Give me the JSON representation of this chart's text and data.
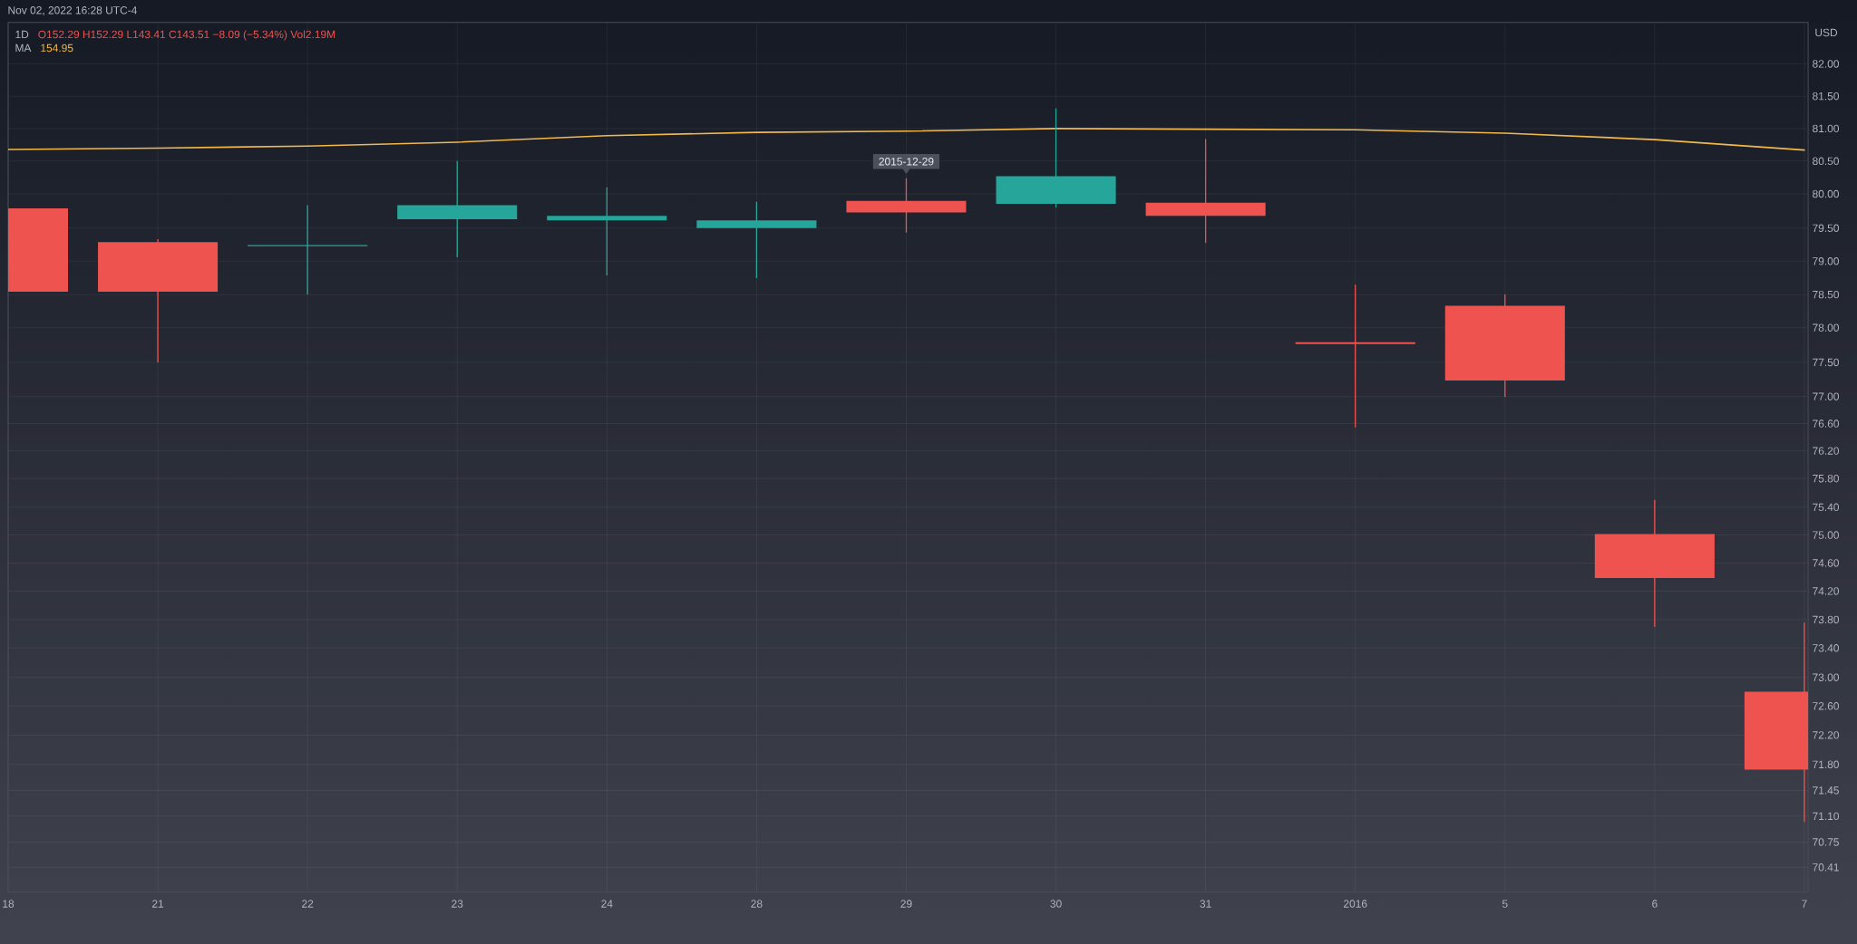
{
  "chart_data": {
    "type": "candlestick",
    "annotations": [
      "Nov 02, 2022 16:28 UTC-4",
      "1D",
      "O152.29 H152.29 L143.41 C143.51 −8.09 (−5.34%) Vol2.19M",
      "154.95",
      {
        "text": "2015-12-29",
        "x": "29",
        "y": 80.31
      }
    ],
    "ylabel": "USD",
    "categories": [
      "18",
      "21",
      "22",
      "23",
      "24",
      "28",
      "29",
      "30",
      "31",
      "2016",
      "5",
      "6",
      "7"
    ],
    "ohlc": [
      [
        79.79,
        79.79,
        78.54,
        78.54
      ],
      [
        79.28,
        79.32,
        77.5,
        78.54
      ],
      [
        79.22,
        79.84,
        78.51,
        79.24
      ],
      [
        79.63,
        80.5,
        79.05,
        79.84
      ],
      [
        79.61,
        80.1,
        78.78,
        79.68
      ],
      [
        79.5,
        79.9,
        78.74,
        79.61
      ],
      [
        79.91,
        80.24,
        79.43,
        79.74
      ],
      [
        79.86,
        81.31,
        79.81,
        80.27
      ],
      [
        79.88,
        80.84,
        79.27,
        79.68
      ],
      [
        77.79,
        78.65,
        76.54,
        77.77
      ],
      [
        78.33,
        78.51,
        76.99,
        77.23
      ],
      [
        75.01,
        75.5,
        73.7,
        74.38
      ],
      [
        72.8,
        73.76,
        71.02,
        71.73
      ]
    ],
    "colors": [
      "#ef5350",
      "#ef5350",
      "#26a69a",
      "#26a69a",
      "#26a69a",
      "#26a69a",
      "#ef5350",
      "#26a69a",
      "#ef5350",
      "#ef5350",
      "#ef5350",
      "#ef5350",
      "#ef5350"
    ],
    "series": [
      {
        "type": "line",
        "name": "MA",
        "color": "#f2b84b",
        "values": [
          80.68,
          80.7,
          80.73,
          80.79,
          80.89,
          80.94,
          80.96,
          81.0,
          80.99,
          80.98,
          80.93,
          80.83,
          80.67
        ]
      }
    ],
    "ylim": [
      70.08,
      82.65
    ],
    "yticks": [
      {
        "value": 82.0,
        "label": "82.00"
      },
      {
        "value": 81.5,
        "label": "81.50"
      },
      {
        "value": 81.0,
        "label": "81.00"
      },
      {
        "value": 80.5,
        "label": "80.50"
      },
      {
        "value": 80.0,
        "label": "80.00"
      },
      {
        "value": 79.5,
        "label": "79.50"
      },
      {
        "value": 79.0,
        "label": "79.00"
      },
      {
        "value": 78.5,
        "label": "78.50"
      },
      {
        "value": 78.0,
        "label": "78.00"
      },
      {
        "value": 77.5,
        "label": "77.50"
      },
      {
        "value": 77.0,
        "label": "77.00"
      },
      {
        "value": 76.6,
        "label": "76.60"
      },
      {
        "value": 76.2,
        "label": "76.20"
      },
      {
        "value": 75.8,
        "label": "75.80"
      },
      {
        "value": 75.4,
        "label": "75.40"
      },
      {
        "value": 75.0,
        "label": "75.00"
      },
      {
        "value": 74.6,
        "label": "74.60"
      },
      {
        "value": 74.2,
        "label": "74.20"
      },
      {
        "value": 73.8,
        "label": "73.80"
      },
      {
        "value": 73.4,
        "label": "73.40"
      },
      {
        "value": 73.0,
        "label": "73.00"
      },
      {
        "value": 72.6,
        "label": "72.60"
      },
      {
        "value": 72.2,
        "label": "72.20"
      },
      {
        "value": 71.8,
        "label": "71.80"
      },
      {
        "value": 71.45,
        "label": "71.45"
      },
      {
        "value": 71.1,
        "label": "71.10"
      },
      {
        "value": 70.75,
        "label": "70.75"
      },
      {
        "value": 70.41,
        "label": "70.41"
      }
    ],
    "log": true,
    "grid": true,
    "legend": "top left"
  }
}
